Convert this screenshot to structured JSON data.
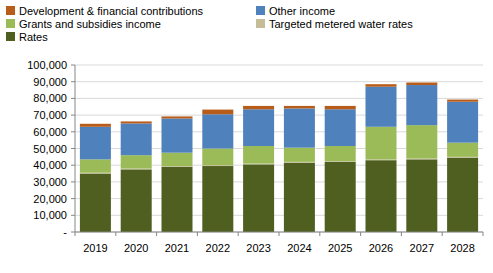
{
  "chart_data": {
    "type": "bar",
    "stacked": true,
    "grid": true,
    "legend": "top",
    "categories": [
      "2019",
      "2020",
      "2021",
      "2022",
      "2023",
      "2024",
      "2025",
      "2026",
      "2027",
      "2028"
    ],
    "series": [
      {
        "name": "Rates",
        "color": "#4f5f1f",
        "values": [
          35000,
          37500,
          39000,
          39500,
          40500,
          41500,
          42000,
          43000,
          43500,
          44500
        ]
      },
      {
        "name": "Targeted metered water rates",
        "color": "#c4bd97",
        "values": [
          500,
          500,
          500,
          500,
          500,
          500,
          500,
          500,
          500,
          500
        ]
      },
      {
        "name": "Grants and subsidies income",
        "color": "#9bbb59",
        "values": [
          8000,
          8000,
          8000,
          10000,
          10500,
          8500,
          9000,
          19500,
          20000,
          8500
        ]
      },
      {
        "name": "Other income",
        "color": "#4f81bd",
        "values": [
          19500,
          19000,
          20500,
          20500,
          22000,
          23500,
          22000,
          24000,
          24000,
          24500
        ]
      },
      {
        "name": "Development & financial contributions",
        "color": "#b85c1a",
        "values": [
          1800,
          1200,
          1200,
          2800,
          2000,
          1500,
          2000,
          1500,
          1500,
          1300
        ]
      }
    ],
    "ylim": [
      0,
      100000
    ],
    "yticks": [
      {
        "value": 0,
        "label": "-"
      },
      {
        "value": 10000,
        "label": "10,000"
      },
      {
        "value": 20000,
        "label": "20,000"
      },
      {
        "value": 30000,
        "label": "30,000"
      },
      {
        "value": 40000,
        "label": "40,000"
      },
      {
        "value": 50000,
        "label": "50,000"
      },
      {
        "value": 60000,
        "label": "60,000"
      },
      {
        "value": 70000,
        "label": "70,000"
      },
      {
        "value": 80000,
        "label": "80,000"
      },
      {
        "value": 90000,
        "label": "90,000"
      },
      {
        "value": 100000,
        "label": "100,000"
      }
    ]
  }
}
